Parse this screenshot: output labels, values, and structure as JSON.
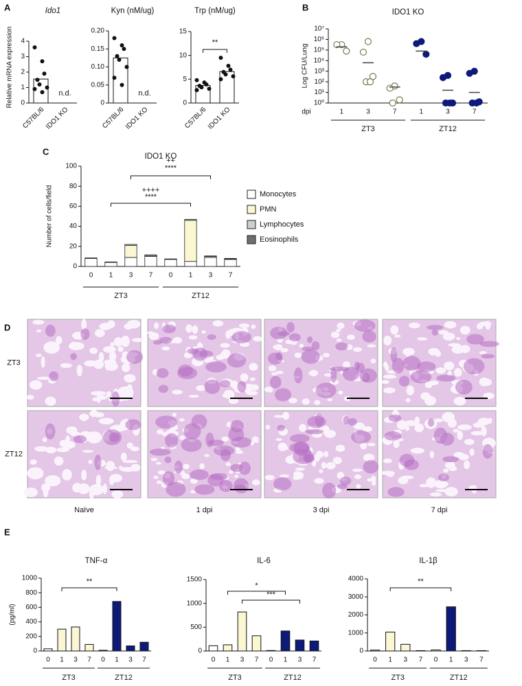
{
  "panel_labels": [
    "A",
    "B",
    "C",
    "D",
    "E"
  ],
  "histology": {
    "rows": [
      "ZT3",
      "ZT12"
    ],
    "columns": [
      "Naïve",
      "1 dpi",
      "3 dpi",
      "7 dpi"
    ]
  },
  "chart_data": [
    {
      "type": "bar",
      "title": "Ido1",
      "ylabel": "Relative mRNA expression",
      "categories": [
        "C57BL/6",
        "IDO1 KO"
      ],
      "values": [
        1.55,
        null
      ],
      "color": "#ffffff",
      "points": [
        [
          3.6,
          2.7,
          1.9,
          1.5,
          1.2,
          1.0,
          0.9,
          0.7
        ],
        []
      ],
      "annotations": [
        "n.d."
      ],
      "ylim": [
        0,
        4
      ],
      "yticks": [
        0,
        1,
        2,
        3,
        4
      ]
    },
    {
      "type": "bar",
      "title": "Kyn (nM/ug)",
      "categories": [
        "C57BL/6",
        "IDO1 KO"
      ],
      "values": [
        0.125,
        null
      ],
      "color": "#ffffff",
      "points": [
        [
          0.18,
          0.16,
          0.15,
          0.13,
          0.12,
          0.1,
          0.07,
          0.05
        ],
        []
      ],
      "annotations": [
        "n.d."
      ],
      "ylim": [
        0,
        0.2
      ],
      "yticks": [
        0,
        0.05,
        {
          "value": 0.1,
          "label": "0.10"
        },
        0.15,
        {
          "value": 0.2,
          "label": "0.20"
        }
      ]
    },
    {
      "type": "bar",
      "title": "Trp (nM/ug)",
      "categories": [
        "C57BL/6",
        "IDO1 KO"
      ],
      "values": [
        3.7,
        6.6
      ],
      "color": "#ffffff",
      "points": [
        [
          4.8,
          4.3,
          3.9,
          3.6,
          3.3,
          3.0,
          2.7
        ],
        [
          9.5,
          7.8,
          7.0,
          6.5,
          6.0,
          5.6,
          5.0
        ]
      ],
      "annotations": [
        "**"
      ],
      "ylim": [
        0,
        15
      ],
      "yticks": [
        0,
        5,
        10,
        15
      ]
    },
    {
      "type": "strip",
      "title": "IDO1 KO",
      "ylabel": "Log CFU/Lung",
      "xlabel": "dpi",
      "log": true,
      "groups": [
        {
          "name": "ZT3",
          "color": "#ffffff",
          "categories": [
            "1",
            "3",
            "7"
          ]
        },
        {
          "name": "ZT12",
          "color": "#0d1a7a",
          "categories": [
            "1",
            "3",
            "7"
          ]
        }
      ],
      "points": [
        [
          320000,
          320000,
          80000
        ],
        [
          630000,
          63000,
          320,
          100,
          100
        ],
        [
          40,
          25,
          2,
          1
        ],
        [
          630000,
          400000,
          40000
        ],
        [
          400,
          250,
          1,
          1,
          1
        ],
        [
          1000,
          630,
          1.3,
          1,
          1
        ]
      ],
      "medians": [
        200000,
        6300,
        32,
        80000,
        16,
        10
      ],
      "ylim": [
        1,
        10000000
      ],
      "yticks": [
        {
          "value": 1,
          "label": "10⁰"
        },
        {
          "value": 10,
          "label": "10¹"
        },
        {
          "value": 100,
          "label": "10²"
        },
        {
          "value": 1000,
          "label": "10³"
        },
        {
          "value": 10000,
          "label": "10⁴"
        },
        {
          "value": 100000,
          "label": "10⁵"
        },
        {
          "value": 1000000,
          "label": "10⁶"
        },
        {
          "value": 10000000,
          "label": "10⁷"
        }
      ]
    },
    {
      "type": "stacked",
      "title": "IDO1  KO",
      "ylabel": "Number of cells/field",
      "legend": "right",
      "groups": [
        {
          "name": "ZT3",
          "categories": [
            "0",
            "1",
            "3",
            "7"
          ]
        },
        {
          "name": "ZT12",
          "categories": [
            "0",
            "1",
            "3",
            "7"
          ]
        }
      ],
      "series": [
        {
          "name": "Monocytes",
          "color": "#ffffff",
          "values": [
            8,
            4,
            9,
            10,
            7,
            5,
            9,
            7
          ]
        },
        {
          "name": "PMN",
          "color": "#fbf7d2",
          "values": [
            0,
            0,
            12,
            1,
            0,
            41,
            1,
            0.5
          ]
        },
        {
          "name": "Lymphocytes",
          "color": "#cfcfcf",
          "values": [
            0.5,
            0.5,
            1,
            0.5,
            0.5,
            1,
            0.5,
            0.5
          ]
        },
        {
          "name": "Eosinophils",
          "color": "#6e6e6e",
          "values": [
            0,
            0,
            0,
            0,
            0,
            0,
            0,
            0
          ]
        }
      ],
      "annotations": [
        "++",
        "****",
        "++++",
        "****"
      ],
      "ylim": [
        0,
        100
      ],
      "yticks": [
        0,
        20,
        40,
        60,
        80,
        100
      ]
    },
    {
      "type": "bar",
      "title": "TNF-α",
      "ylabel": "(pg/ml)",
      "groups": [
        {
          "name": "ZT3",
          "categories": [
            "0",
            "1",
            "3",
            "7"
          ]
        },
        {
          "name": "ZT12",
          "categories": [
            "0",
            "1",
            "3",
            "7"
          ]
        }
      ],
      "values": [
        30,
        300,
        330,
        90,
        10,
        680,
        70,
        120
      ],
      "colors": [
        "#ffffff",
        "#fbf7d2",
        "#fbf7d2",
        "#fbf7d2",
        "#ffffff",
        "#0d1a7a",
        "#0d1a7a",
        "#0d1a7a"
      ],
      "annotations": [
        "**"
      ],
      "ylim": [
        0,
        1000
      ],
      "yticks": [
        0,
        200,
        400,
        600,
        800,
        1000
      ]
    },
    {
      "type": "bar",
      "title": "IL-6",
      "groups": [
        {
          "name": "ZT3",
          "categories": [
            "0",
            "1",
            "3",
            "7"
          ]
        },
        {
          "name": "ZT12",
          "categories": [
            "0",
            "1",
            "3",
            "7"
          ]
        }
      ],
      "values": [
        110,
        130,
        820,
        320,
        10,
        420,
        230,
        210
      ],
      "colors": [
        "#ffffff",
        "#fbf7d2",
        "#fbf7d2",
        "#fbf7d2",
        "#ffffff",
        "#0d1a7a",
        "#0d1a7a",
        "#0d1a7a"
      ],
      "annotations": [
        "*",
        "***"
      ],
      "ylim": [
        0,
        1500
      ],
      "yticks": [
        0,
        500,
        1000,
        1500
      ]
    },
    {
      "type": "bar",
      "title": "IL-1β",
      "groups": [
        {
          "name": "ZT3",
          "categories": [
            "0",
            "1",
            "3",
            "7"
          ]
        },
        {
          "name": "ZT12",
          "categories": [
            "0",
            "1",
            "3",
            "7"
          ]
        }
      ],
      "values": [
        50,
        1050,
        370,
        20,
        60,
        2450,
        20,
        20
      ],
      "colors": [
        "#ffffff",
        "#fbf7d2",
        "#fbf7d2",
        "#fbf7d2",
        "#ffffff",
        "#0d1a7a",
        "#0d1a7a",
        "#0d1a7a"
      ],
      "annotations": [
        "**"
      ],
      "ylim": [
        0,
        4000
      ],
      "yticks": [
        0,
        1000,
        2000,
        3000,
        4000
      ]
    }
  ]
}
